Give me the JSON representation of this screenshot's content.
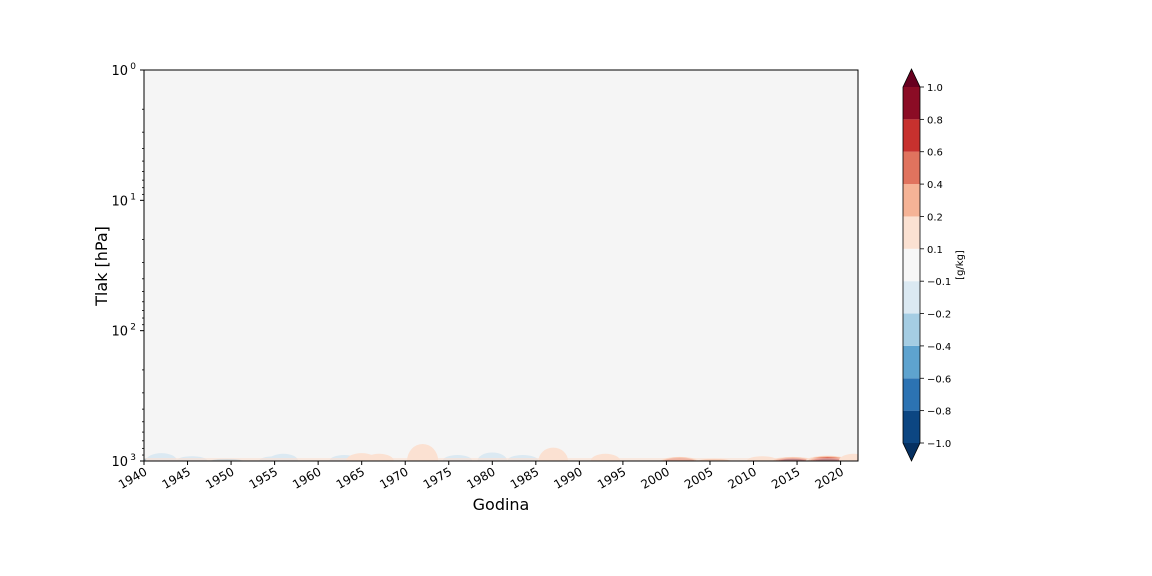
{
  "chart_data": {
    "type": "heatmap",
    "plot_style": "filled contour, time vs pressure",
    "xlabel": "Godina",
    "ylabel": "Tlak [hPa]",
    "x_range": [
      1940,
      2022
    ],
    "x_ticks": [
      "1940",
      "1945",
      "1950",
      "1955",
      "1960",
      "1965",
      "1970",
      "1975",
      "1980",
      "1985",
      "1990",
      "1995",
      "2000",
      "2005",
      "2010",
      "2015",
      "2020"
    ],
    "y_scale": "log",
    "y_inverted": true,
    "y_range": [
      1,
      1000
    ],
    "y_ticks": [
      {
        "value": 1,
        "base": "10",
        "exp": "0"
      },
      {
        "value": 10,
        "base": "10",
        "exp": "1"
      },
      {
        "value": 100,
        "base": "10",
        "exp": "2"
      },
      {
        "value": 1000,
        "base": "10",
        "exp": "3"
      }
    ],
    "background_color": "#f5f5f5",
    "colorbar": {
      "label": "[g/kg]",
      "extend": "both",
      "ticks": [
        "−1.0",
        "−0.8",
        "−0.6",
        "−0.4",
        "−0.2",
        "−0.1",
        "0.1",
        "0.2",
        "0.4",
        "0.6",
        "0.8",
        "1.0"
      ],
      "levels": [
        -1.0,
        -0.8,
        -0.6,
        -0.4,
        -0.2,
        -0.1,
        0.1,
        0.2,
        0.4,
        0.6,
        0.8,
        1.0
      ],
      "colors": [
        "#0c4682",
        "#2c73b3",
        "#5ea3cf",
        "#a5cde3",
        "#dbe9f2",
        "#f7f7f7",
        "#fbe1d2",
        "#f5b396",
        "#e0735e",
        "#c7312e",
        "#8b0c25"
      ],
      "under_color": "#053061",
      "over_color": "#67001f"
    },
    "features": [
      {
        "x": 1940.5,
        "y": 950,
        "value": -0.6
      },
      {
        "x": 1942,
        "y": 870,
        "value": -0.2
      },
      {
        "x": 1945.5,
        "y": 920,
        "value": -0.2
      },
      {
        "x": 1949.5,
        "y": 960,
        "value": -0.4
      },
      {
        "x": 1955,
        "y": 920,
        "value": -0.2
      },
      {
        "x": 1956,
        "y": 880,
        "value": -0.1
      },
      {
        "x": 1963,
        "y": 900,
        "value": -0.1
      },
      {
        "x": 1965,
        "y": 870,
        "value": 0.2
      },
      {
        "x": 1967,
        "y": 880,
        "value": 0.1
      },
      {
        "x": 1972,
        "y": 740,
        "value": 0.2
      },
      {
        "x": 1976,
        "y": 900,
        "value": -0.1
      },
      {
        "x": 1980,
        "y": 860,
        "value": -0.1
      },
      {
        "x": 1983.5,
        "y": 900,
        "value": -0.2
      },
      {
        "x": 1987,
        "y": 790,
        "value": 0.1
      },
      {
        "x": 1993,
        "y": 880,
        "value": 0.1
      },
      {
        "x": 2001.5,
        "y": 930,
        "value": 0.6
      },
      {
        "x": 2005.5,
        "y": 960,
        "value": 0.4
      },
      {
        "x": 2011,
        "y": 920,
        "value": 0.2
      },
      {
        "x": 2014.5,
        "y": 930,
        "value": 1.0
      },
      {
        "x": 2018.5,
        "y": 910,
        "value": 1.0
      },
      {
        "x": 2021.5,
        "y": 880,
        "value": 0.1
      }
    ]
  }
}
